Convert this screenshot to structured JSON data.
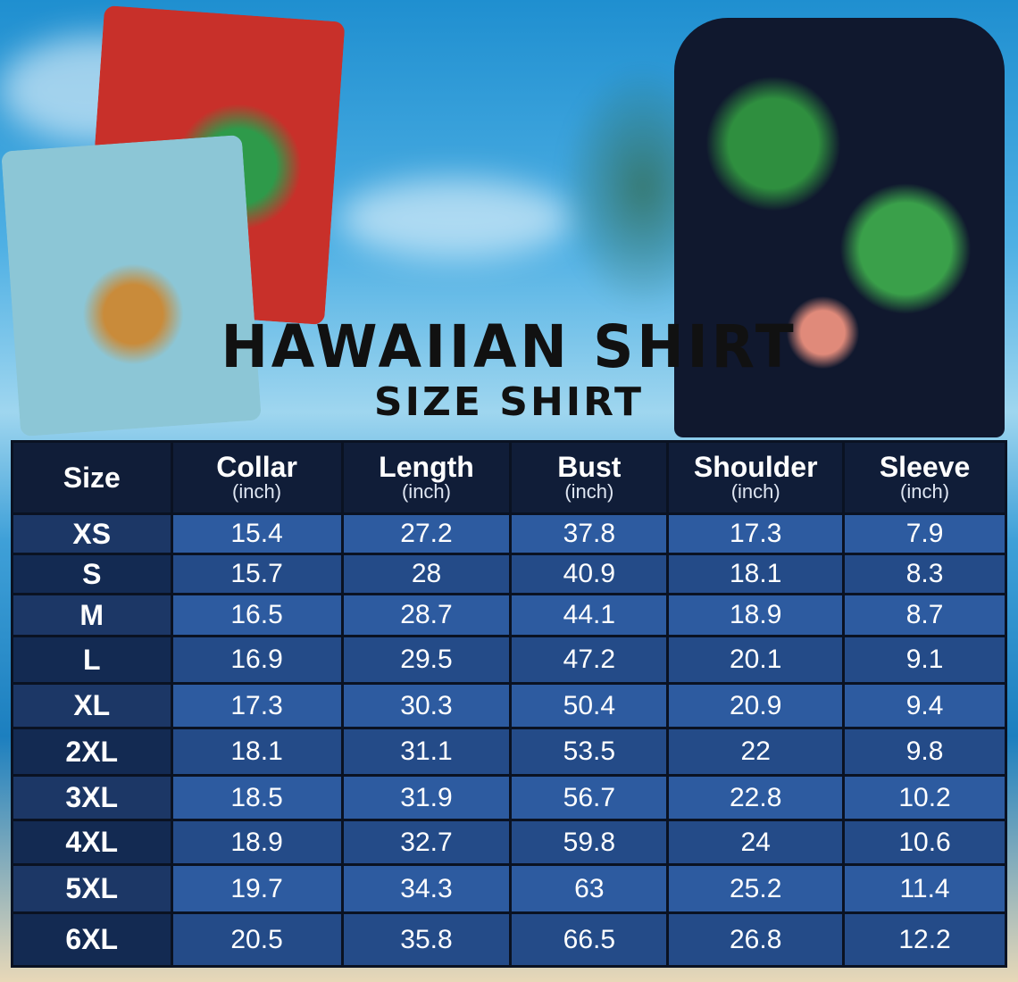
{
  "title": "HAWAIIAN SHIRT",
  "subtitle": "SIZE SHIRT",
  "colors": {
    "header_bg": "#101d38",
    "cell_light": "#2d5ba0",
    "cell_dark": "#244b88",
    "size_cell": "#1c3766",
    "border": "#0a1222"
  },
  "table": {
    "columns": [
      {
        "label": "Size",
        "unit": ""
      },
      {
        "label": "Collar",
        "unit": "(inch)"
      },
      {
        "label": "Length",
        "unit": "(inch)"
      },
      {
        "label": "Bust",
        "unit": "(inch)"
      },
      {
        "label": "Shoulder",
        "unit": "(inch)"
      },
      {
        "label": "Sleeve",
        "unit": "(inch)"
      }
    ],
    "rows": [
      [
        "XS",
        "15.4",
        "27.2",
        "37.8",
        "17.3",
        "7.9"
      ],
      [
        "S",
        "15.7",
        "28",
        "40.9",
        "18.1",
        "8.3"
      ],
      [
        "M",
        "16.5",
        "28.7",
        "44.1",
        "18.9",
        "8.7"
      ],
      [
        "L",
        "16.9",
        "29.5",
        "47.2",
        "20.1",
        "9.1"
      ],
      [
        "XL",
        "17.3",
        "30.3",
        "50.4",
        "20.9",
        "9.4"
      ],
      [
        "2XL",
        "18.1",
        "31.1",
        "53.5",
        "22",
        "9.8"
      ],
      [
        "3XL",
        "18.5",
        "31.9",
        "56.7",
        "22.8",
        "10.2"
      ],
      [
        "4XL",
        "18.9",
        "32.7",
        "59.8",
        "24",
        "10.6"
      ],
      [
        "5XL",
        "19.7",
        "34.3",
        "63",
        "25.2",
        "11.4"
      ],
      [
        "6XL",
        "20.5",
        "35.8",
        "66.5",
        "26.8",
        "12.2"
      ]
    ]
  }
}
